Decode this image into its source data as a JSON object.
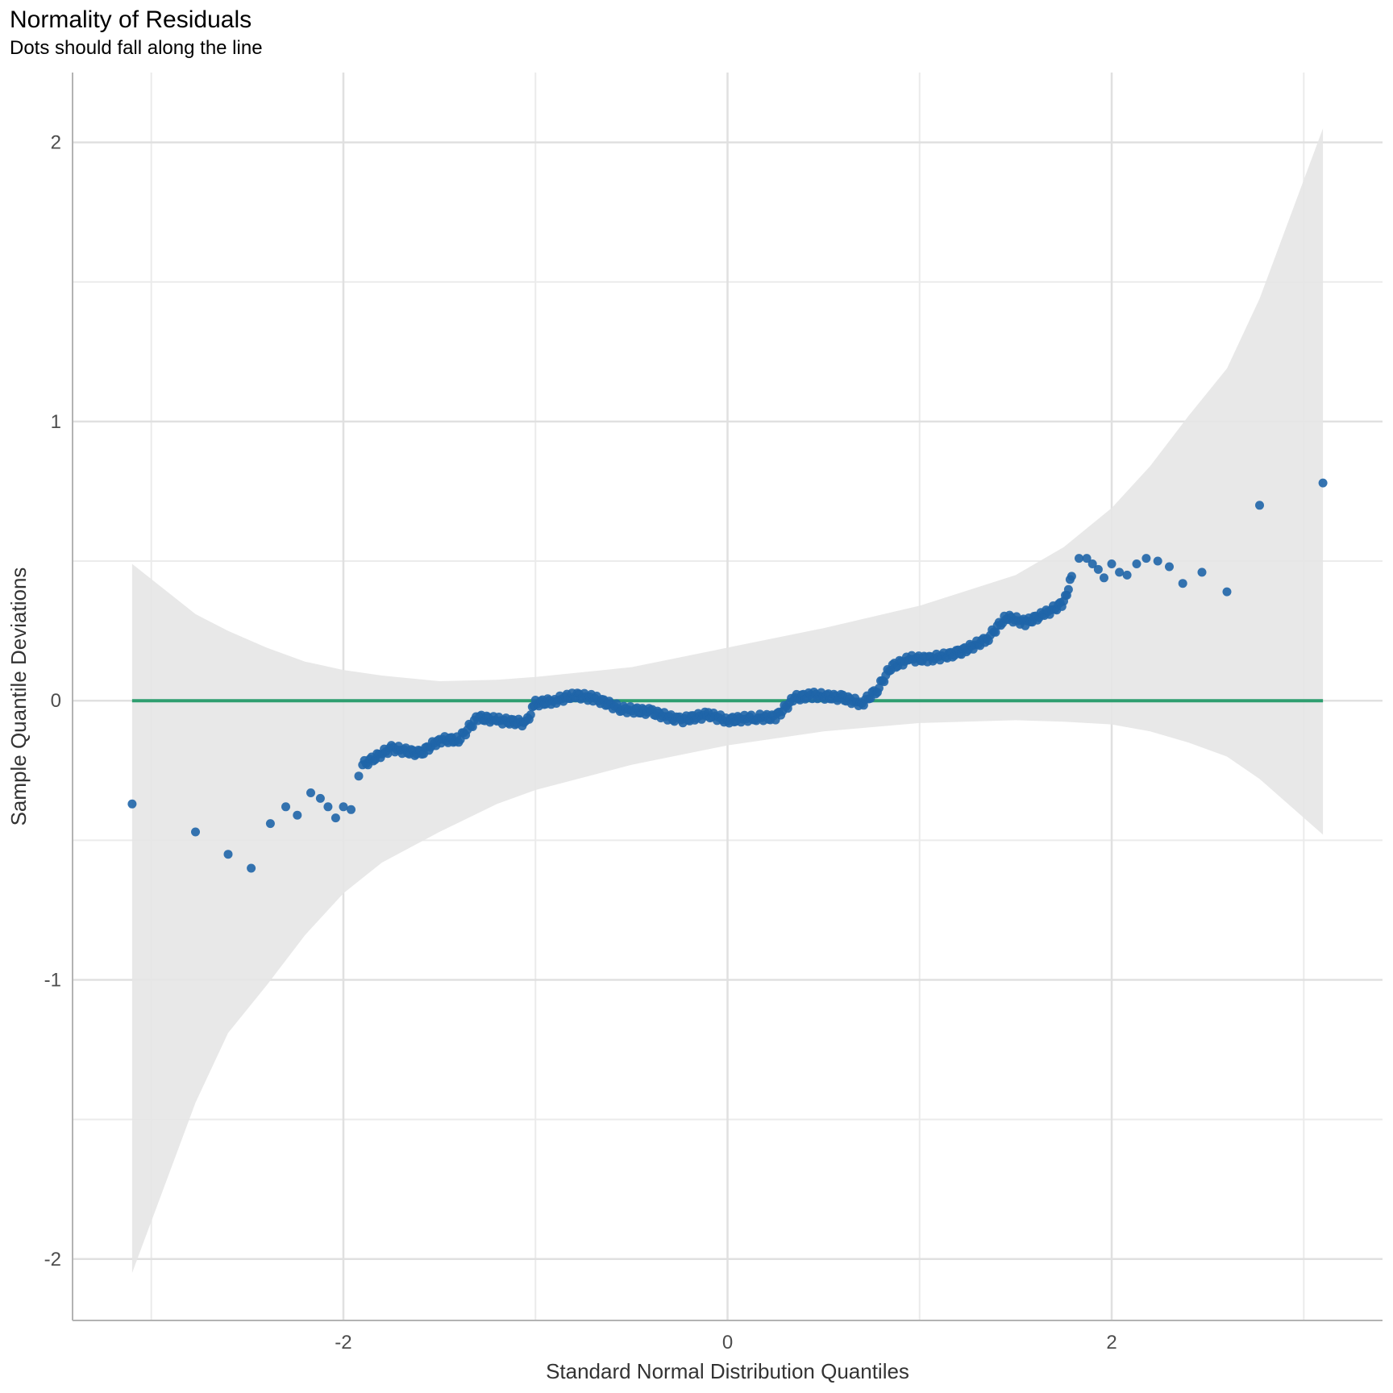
{
  "chart_data": {
    "type": "scatter",
    "title": "Normality of Residuals",
    "subtitle": "Dots should fall along the line",
    "xlabel": "Standard Normal Distribution Quantiles",
    "ylabel": "Sample Quantile Deviations",
    "xlim": [
      -3.41,
      3.41
    ],
    "ylim": [
      -2.22,
      2.25
    ],
    "x_ticks": [
      -2,
      0,
      2
    ],
    "y_ticks": [
      -2,
      -1,
      0,
      1,
      2
    ],
    "reference_line": {
      "y": 0,
      "x_range": [
        -3.1,
        3.1
      ],
      "color": "#2e9e6f"
    },
    "point_color": "#1f65a8",
    "band_color": "#e6e6e6",
    "confidence_band": {
      "x": [
        -3.1,
        -2.77,
        -2.6,
        -2.4,
        -2.2,
        -2.0,
        -1.8,
        -1.5,
        -1.2,
        -1.0,
        -0.5,
        0.0,
        0.5,
        1.0,
        1.5,
        1.75,
        2.0,
        2.2,
        2.4,
        2.6,
        2.77,
        3.1
      ],
      "upper": [
        0.49,
        0.31,
        0.25,
        0.19,
        0.14,
        0.11,
        0.09,
        0.07,
        0.075,
        0.085,
        0.12,
        0.19,
        0.26,
        0.34,
        0.45,
        0.55,
        0.69,
        0.84,
        1.02,
        1.19,
        1.44,
        2.05
      ],
      "lower": [
        -2.05,
        -1.44,
        -1.19,
        -1.02,
        -0.84,
        -0.69,
        -0.58,
        -0.47,
        -0.37,
        -0.32,
        -0.23,
        -0.16,
        -0.11,
        -0.08,
        -0.07,
        -0.075,
        -0.085,
        -0.11,
        -0.15,
        -0.2,
        -0.28,
        -0.48
      ]
    },
    "sample_points": [
      {
        "x": -3.1,
        "y": -0.37
      },
      {
        "x": -2.77,
        "y": -0.47
      },
      {
        "x": -2.6,
        "y": -0.55
      },
      {
        "x": -2.48,
        "y": -0.6
      },
      {
        "x": -2.38,
        "y": -0.44
      },
      {
        "x": -2.3,
        "y": -0.38
      },
      {
        "x": -2.24,
        "y": -0.41
      },
      {
        "x": -2.17,
        "y": -0.33
      },
      {
        "x": -2.12,
        "y": -0.35
      },
      {
        "x": -2.08,
        "y": -0.38
      },
      {
        "x": -2.04,
        "y": -0.42
      },
      {
        "x": -2.0,
        "y": -0.38
      },
      {
        "x": -1.96,
        "y": -0.39
      },
      {
        "x": -1.92,
        "y": -0.27
      }
    ],
    "bulk_trend": [
      {
        "x": -1.9,
        "y": -0.23
      },
      {
        "x": -1.75,
        "y": -0.17
      },
      {
        "x": -1.6,
        "y": -0.19
      },
      {
        "x": -1.5,
        "y": -0.14
      },
      {
        "x": -1.4,
        "y": -0.14
      },
      {
        "x": -1.3,
        "y": -0.06
      },
      {
        "x": -1.2,
        "y": -0.07
      },
      {
        "x": -1.05,
        "y": -0.08
      },
      {
        "x": -1.0,
        "y": -0.01
      },
      {
        "x": -0.9,
        "y": 0.0
      },
      {
        "x": -0.8,
        "y": 0.02
      },
      {
        "x": -0.7,
        "y": 0.01
      },
      {
        "x": -0.55,
        "y": -0.03
      },
      {
        "x": -0.4,
        "y": -0.04
      },
      {
        "x": -0.25,
        "y": -0.07
      },
      {
        "x": -0.1,
        "y": -0.05
      },
      {
        "x": 0.0,
        "y": -0.07
      },
      {
        "x": 0.15,
        "y": -0.06
      },
      {
        "x": 0.25,
        "y": -0.06
      },
      {
        "x": 0.35,
        "y": 0.01
      },
      {
        "x": 0.45,
        "y": 0.02
      },
      {
        "x": 0.6,
        "y": 0.01
      },
      {
        "x": 0.7,
        "y": -0.01
      },
      {
        "x": 0.78,
        "y": 0.04
      },
      {
        "x": 0.85,
        "y": 0.12
      },
      {
        "x": 0.95,
        "y": 0.15
      },
      {
        "x": 1.05,
        "y": 0.15
      },
      {
        "x": 1.2,
        "y": 0.17
      },
      {
        "x": 1.35,
        "y": 0.22
      },
      {
        "x": 1.45,
        "y": 0.3
      },
      {
        "x": 1.55,
        "y": 0.28
      },
      {
        "x": 1.65,
        "y": 0.31
      },
      {
        "x": 1.75,
        "y": 0.35
      },
      {
        "x": 1.8,
        "y": 0.46
      }
    ],
    "tail_points": [
      {
        "x": 1.83,
        "y": 0.51
      },
      {
        "x": 1.87,
        "y": 0.51
      },
      {
        "x": 1.9,
        "y": 0.49
      },
      {
        "x": 1.93,
        "y": 0.47
      },
      {
        "x": 1.96,
        "y": 0.44
      },
      {
        "x": 2.0,
        "y": 0.49
      },
      {
        "x": 2.04,
        "y": 0.46
      },
      {
        "x": 2.08,
        "y": 0.45
      },
      {
        "x": 2.13,
        "y": 0.49
      },
      {
        "x": 2.18,
        "y": 0.51
      },
      {
        "x": 2.24,
        "y": 0.5
      },
      {
        "x": 2.3,
        "y": 0.48
      },
      {
        "x": 2.37,
        "y": 0.42
      },
      {
        "x": 2.47,
        "y": 0.46
      },
      {
        "x": 2.6,
        "y": 0.39
      },
      {
        "x": 2.77,
        "y": 0.7
      },
      {
        "x": 3.1,
        "y": 0.78
      }
    ]
  }
}
